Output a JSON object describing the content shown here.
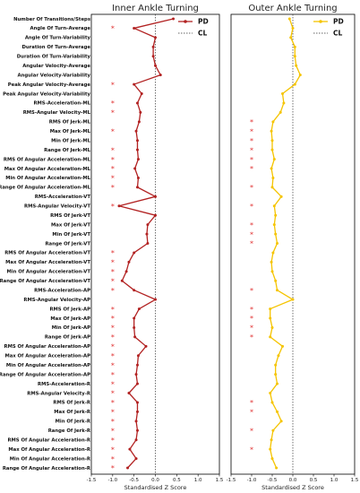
{
  "chart_data": {
    "type": "line",
    "categories": [
      "Number Of Transitions/Steps",
      "Angle Of Turn-Average",
      "Angle Of Turn-Variability",
      "Duration Of Turn-Average",
      "Duration Of Turn-Variability",
      "Angular Velocity-Average",
      "Angular Velocity-Variability",
      "Peak Angular Velocity-Average",
      "Peak Angular Velocity-Variability",
      "RMS-Acceleration-ML",
      "RMS-Angular Velocity-ML",
      "RMS Of Jerk-ML",
      "Max Of Jerk-ML",
      "Min Of Jerk-ML",
      "Range Of Jerk-ML",
      "RMS Of Angular Acceleration-ML",
      "Max Of Angular Acceleration-ML",
      "Min Of Angular Acceleration-ML",
      "Range Of Angular Acceleration-ML",
      "RMS-Acceleration-VT",
      "RMS-Angular Velocity-VT",
      "RMS Of Jerk-VT",
      "Max Of Jerk-VT",
      "Min Of Jerk-VT",
      "Range Of Jerk-VT",
      "RMS Of Angular Acceleration-VT",
      "Max Of Angular Acceleration-VT",
      "Min Of Angular Acceleration-VT",
      "Range Of Angular Acceleration-VT",
      "RMS-Acceleration-AP",
      "RMS-Angular Velocity-AP",
      "RMS Of Jerk-AP",
      "Max Of Jerk-AP",
      "Min Of Jerk-AP",
      "Range Of Jerk-AP",
      "RMS Of Angular Acceleration-AP",
      "Max Of Angular Acceleration-AP",
      "Min Of Angular Acceleration-AP",
      "Range Of Angular Acceleration-AP",
      "RMS-Acceleration-R",
      "RMS-Angular Velocity-R",
      "RMS Of Jerk-R",
      "Max Of Jerk-R",
      "Min Of Jerk-R",
      "Range Of Jerk-R",
      "RMS Of Angular Acceleration-R",
      "Max Of Angular Acceleration-R",
      "Min Of Angular Acceleration-R",
      "Range Of Angular Acceleration-R"
    ],
    "xlabel": "Standardised Z Score",
    "xlim": [
      -1.5,
      1.5
    ],
    "xticks": [
      "-1.5",
      "-1.0",
      "-0.5",
      "0.0",
      "0.5",
      "1.0",
      "1.5"
    ],
    "reference_label": "CL",
    "reference_value": 0,
    "legend_position": "top-right",
    "panels": [
      {
        "title": "Inner Ankle Turning",
        "series_name": "PD",
        "color": "#b22222",
        "values": [
          0.42,
          -0.5,
          0.0,
          -0.05,
          -0.05,
          0.0,
          0.12,
          -0.5,
          -0.32,
          -0.42,
          -0.35,
          -0.38,
          -0.45,
          -0.42,
          -0.42,
          -0.4,
          -0.48,
          -0.4,
          -0.42,
          0.0,
          -0.85,
          0.0,
          -0.18,
          -0.2,
          -0.18,
          -0.5,
          -0.62,
          -0.68,
          -0.78,
          -0.5,
          0.0,
          -0.38,
          -0.5,
          -0.5,
          -0.48,
          -0.22,
          -0.4,
          -0.42,
          -0.45,
          -0.42,
          -0.62,
          -0.42,
          -0.42,
          -0.45,
          -0.42,
          -0.45,
          -0.6,
          -0.45,
          -0.65
        ],
        "significant": [
          false,
          true,
          false,
          false,
          false,
          false,
          false,
          true,
          false,
          true,
          true,
          false,
          true,
          false,
          true,
          true,
          true,
          true,
          true,
          false,
          true,
          false,
          false,
          false,
          false,
          true,
          true,
          true,
          true,
          true,
          false,
          true,
          true,
          true,
          true,
          true,
          true,
          true,
          true,
          true,
          true,
          true,
          true,
          true,
          true,
          true,
          true,
          true,
          true
        ]
      },
      {
        "title": "Outer Ankle Turning",
        "series_name": "PD",
        "color": "#f5c400",
        "values": [
          -0.08,
          0.0,
          -0.05,
          0.05,
          0.05,
          0.08,
          0.18,
          0.05,
          -0.25,
          -0.22,
          -0.3,
          -0.48,
          -0.52,
          -0.5,
          -0.5,
          -0.45,
          -0.52,
          -0.48,
          -0.5,
          -0.28,
          -0.45,
          -0.42,
          -0.45,
          -0.42,
          -0.38,
          -0.48,
          -0.52,
          -0.5,
          -0.42,
          -0.38,
          0.0,
          -0.55,
          -0.55,
          -0.5,
          -0.55,
          -0.25,
          -0.35,
          -0.42,
          -0.42,
          -0.38,
          -0.55,
          -0.5,
          -0.38,
          -0.28,
          -0.48,
          -0.52,
          -0.55,
          -0.5,
          -0.4
        ],
        "significant": [
          false,
          false,
          false,
          false,
          false,
          false,
          false,
          false,
          false,
          false,
          false,
          true,
          true,
          true,
          true,
          true,
          true,
          false,
          true,
          false,
          true,
          false,
          true,
          true,
          true,
          false,
          false,
          false,
          false,
          true,
          false,
          true,
          true,
          true,
          true,
          false,
          false,
          false,
          false,
          false,
          false,
          true,
          true,
          false,
          true,
          false,
          true,
          false,
          false
        ]
      }
    ]
  }
}
